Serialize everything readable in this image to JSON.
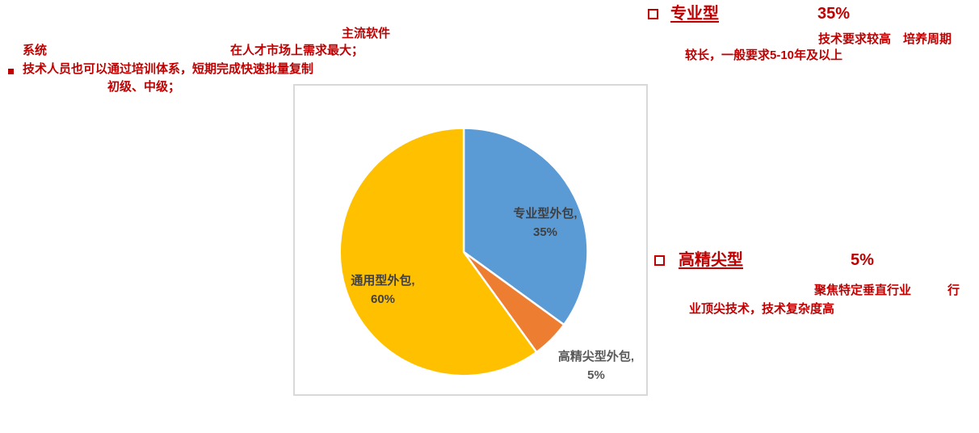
{
  "page": {
    "background": "#FFFFFF"
  },
  "colors": {
    "accent_red": "#C00000",
    "chart_border": "#D9D9D9",
    "pie_label_dark": "#404040",
    "pie_label_gray": "#595959"
  },
  "icons": {
    "filled_square_bullet": "▪",
    "hollow_square_bullet": "□"
  },
  "annotations": {
    "system": "系统",
    "mainstream_software": "主流软件",
    "market_demand": "在人才市场上需求最大；",
    "training": "技术人员也可以通过培训体系，短期完成快速批量复制",
    "levels": "初级、中级；"
  },
  "professional_block": {
    "title": "专业型",
    "value": "35%",
    "desc_line1": "技术要求较高　培养周期",
    "desc_line2": "较长，一般要求5-10年及以上"
  },
  "highend_block": {
    "title": "高精尖型",
    "value": "5%",
    "desc_line1_a": "聚焦特定垂直行业",
    "desc_line1_b": "行",
    "desc_line2": "业顶尖技术，技术复杂度高"
  },
  "chart_data": {
    "type": "pie",
    "labels": [
      "专业型外包",
      "高精尖型外包",
      "通用型外包"
    ],
    "values": [
      35,
      5,
      60
    ],
    "colors": [
      "#5B9BD5",
      "#ED7D31",
      "#FFC000"
    ],
    "slice_names": [
      "professional",
      "highend",
      "general"
    ],
    "start_angle_deg": 0,
    "direction": "clockwise",
    "legend": "none",
    "slice_labels": [
      {
        "line1": "专业型外包,",
        "line2": "35%"
      },
      {
        "line1": "高精尖型外包,",
        "line2": "5%"
      },
      {
        "line1": "通用型外包,",
        "line2": "60%"
      }
    ]
  }
}
